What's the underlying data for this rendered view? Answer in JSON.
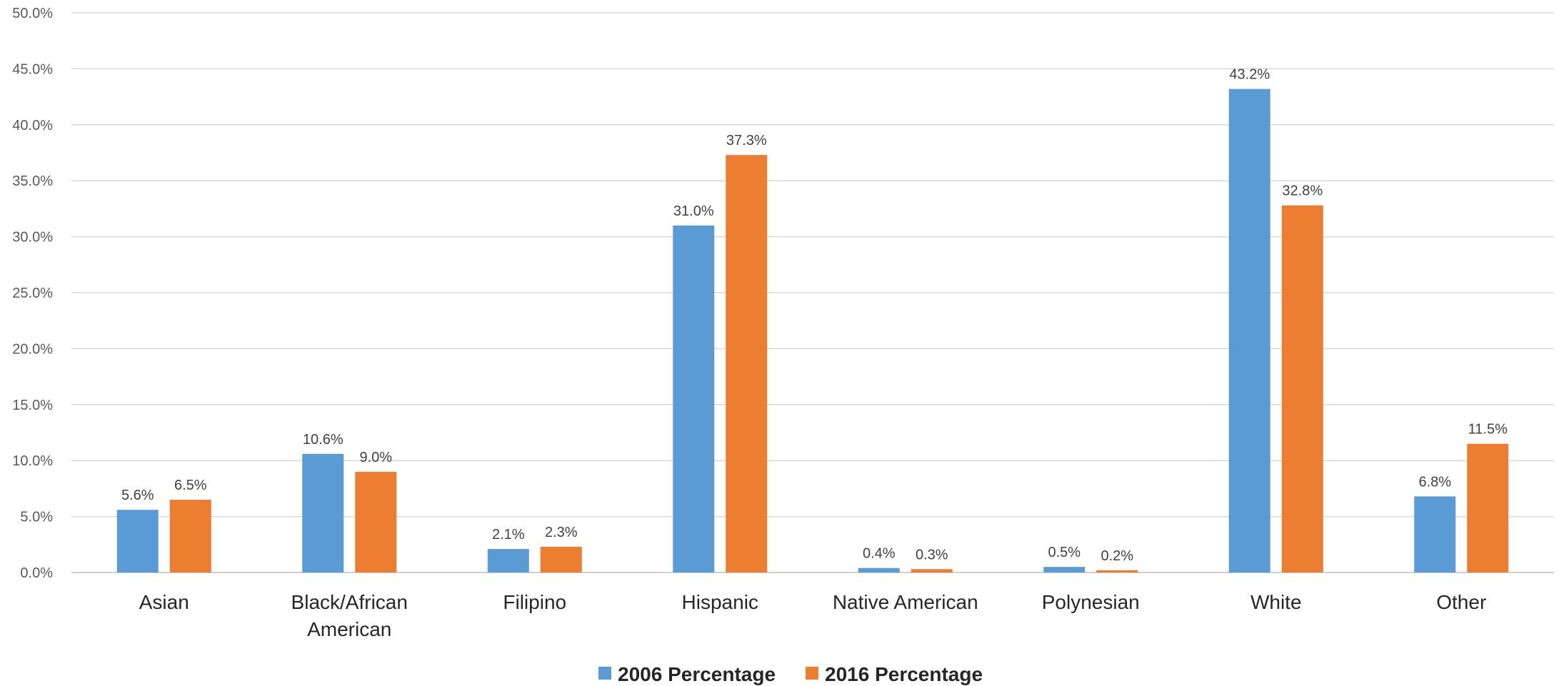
{
  "chart_data": {
    "type": "bar",
    "categories": [
      [
        "Asian"
      ],
      [
        "Black/African",
        "American"
      ],
      [
        "Filipino"
      ],
      [
        "Hispanic"
      ],
      [
        "Native American"
      ],
      [
        "Polynesian"
      ],
      [
        "White"
      ],
      [
        "Other"
      ]
    ],
    "series": [
      {
        "name": "2006 Percentage",
        "color": "#5B9BD5",
        "values": [
          5.6,
          10.6,
          2.1,
          31.0,
          0.4,
          0.5,
          43.2,
          6.8
        ],
        "labels": [
          "5.6%",
          "10.6%",
          "2.1%",
          "31.0%",
          "0.4%",
          "0.5%",
          "43.2%",
          "6.8%"
        ]
      },
      {
        "name": "2016 Percentage",
        "color": "#ED7D31",
        "values": [
          6.5,
          9.0,
          2.3,
          37.3,
          0.3,
          0.2,
          32.8,
          11.5
        ],
        "labels": [
          "6.5%",
          "9.0%",
          "2.3%",
          "37.3%",
          "0.3%",
          "0.2%",
          "32.8%",
          "11.5%"
        ]
      }
    ],
    "yticks": [
      {
        "value": 0,
        "label": "0.0%"
      },
      {
        "value": 5,
        "label": "5.0%"
      },
      {
        "value": 10,
        "label": "10.0%"
      },
      {
        "value": 15,
        "label": "15.0%"
      },
      {
        "value": 20,
        "label": "20.0%"
      },
      {
        "value": 25,
        "label": "25.0%"
      },
      {
        "value": 30,
        "label": "30.0%"
      },
      {
        "value": 35,
        "label": "35.0%"
      },
      {
        "value": 40,
        "label": "40.0%"
      },
      {
        "value": 45,
        "label": "45.0%"
      },
      {
        "value": 50,
        "label": "50.0%"
      }
    ],
    "ylim": [
      0,
      50
    ],
    "grid": true,
    "legend_position": "bottom"
  }
}
